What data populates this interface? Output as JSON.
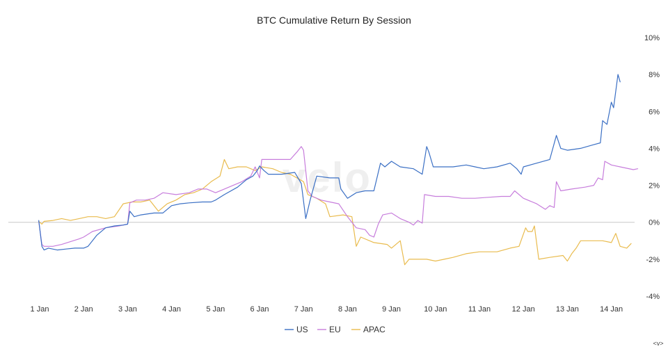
{
  "chart_data": {
    "type": "line",
    "title": "BTC Cumulative Return By Session",
    "xlabel": "",
    "ylabel": "",
    "x_tick_labels": [
      "1 Jan",
      "2 Jan",
      "3 Jan",
      "4 Jan",
      "5 Jan",
      "6 Jan",
      "7 Jan",
      "8 Jan",
      "9 Jan",
      "10 Jan",
      "11 Jan",
      "12 Jan",
      "13 Jan",
      "14 Jan"
    ],
    "y_ticks": [
      {
        "value": 10,
        "label": "10%"
      },
      {
        "value": 8,
        "label": "8%"
      },
      {
        "value": 6,
        "label": "6%"
      },
      {
        "value": 4,
        "label": "4%"
      },
      {
        "value": 2,
        "label": "2%"
      },
      {
        "value": 0,
        "label": "0%"
      },
      {
        "value": -2,
        "label": "-2%"
      },
      {
        "value": -4,
        "label": "-4%"
      }
    ],
    "ylim": [
      -4,
      10
    ],
    "xlim": [
      0.8,
      14.9
    ],
    "y_axis_side": "right",
    "grid": false,
    "zero_line": true,
    "legend_position": "bottom",
    "watermark": "velo",
    "footer_label": "<v>",
    "series": [
      {
        "name": "US",
        "color": "#3a6fc4",
        "points": [
          [
            0.98,
            0.1
          ],
          [
            1.05,
            -1.3
          ],
          [
            1.1,
            -1.5
          ],
          [
            1.2,
            -1.4
          ],
          [
            1.4,
            -1.5
          ],
          [
            1.6,
            -1.45
          ],
          [
            1.8,
            -1.4
          ],
          [
            2.0,
            -1.4
          ],
          [
            2.1,
            -1.3
          ],
          [
            2.3,
            -0.7
          ],
          [
            2.5,
            -0.3
          ],
          [
            2.7,
            -0.2
          ],
          [
            2.9,
            -0.15
          ],
          [
            3.0,
            -0.1
          ],
          [
            3.05,
            0.6
          ],
          [
            3.15,
            0.3
          ],
          [
            3.3,
            0.4
          ],
          [
            3.6,
            0.5
          ],
          [
            3.8,
            0.5
          ],
          [
            4.0,
            0.9
          ],
          [
            4.2,
            1.0
          ],
          [
            4.4,
            1.05
          ],
          [
            4.7,
            1.1
          ],
          [
            4.9,
            1.1
          ],
          [
            5.0,
            1.2
          ],
          [
            5.2,
            1.5
          ],
          [
            5.5,
            1.9
          ],
          [
            5.7,
            2.3
          ],
          [
            5.85,
            2.5
          ],
          [
            5.95,
            2.8
          ],
          [
            6.0,
            3.05
          ],
          [
            6.1,
            2.8
          ],
          [
            6.2,
            2.6
          ],
          [
            6.5,
            2.6
          ],
          [
            6.8,
            2.7
          ],
          [
            6.95,
            2.1
          ],
          [
            7.05,
            0.2
          ],
          [
            7.15,
            1.2
          ],
          [
            7.3,
            2.5
          ],
          [
            7.6,
            2.4
          ],
          [
            7.8,
            2.4
          ],
          [
            7.85,
            1.8
          ],
          [
            8.0,
            1.3
          ],
          [
            8.2,
            1.6
          ],
          [
            8.4,
            1.7
          ],
          [
            8.6,
            1.7
          ],
          [
            8.75,
            3.2
          ],
          [
            8.85,
            3.0
          ],
          [
            9.0,
            3.3
          ],
          [
            9.2,
            3.0
          ],
          [
            9.5,
            2.9
          ],
          [
            9.7,
            2.6
          ],
          [
            9.8,
            4.1
          ],
          [
            9.85,
            3.8
          ],
          [
            9.95,
            3.0
          ],
          [
            10.1,
            3.0
          ],
          [
            10.4,
            3.0
          ],
          [
            10.7,
            3.1
          ],
          [
            10.9,
            3.0
          ],
          [
            11.1,
            2.9
          ],
          [
            11.4,
            3.0
          ],
          [
            11.7,
            3.2
          ],
          [
            11.85,
            2.9
          ],
          [
            11.95,
            2.6
          ],
          [
            12.0,
            3.0
          ],
          [
            12.3,
            3.2
          ],
          [
            12.6,
            3.4
          ],
          [
            12.75,
            4.7
          ],
          [
            12.85,
            4.0
          ],
          [
            13.0,
            3.9
          ],
          [
            13.3,
            4.0
          ],
          [
            13.6,
            4.2
          ],
          [
            13.75,
            4.3
          ],
          [
            13.8,
            5.5
          ],
          [
            13.9,
            5.3
          ],
          [
            14.0,
            6.5
          ],
          [
            14.05,
            6.2
          ],
          [
            14.15,
            8.0
          ],
          [
            14.2,
            7.6
          ]
        ]
      },
      {
        "name": "EU",
        "color": "#c77ddc",
        "points": [
          [
            0.98,
            0.05
          ],
          [
            1.05,
            -1.2
          ],
          [
            1.1,
            -1.3
          ],
          [
            1.3,
            -1.3
          ],
          [
            1.5,
            -1.2
          ],
          [
            1.7,
            -1.05
          ],
          [
            1.9,
            -0.9
          ],
          [
            2.0,
            -0.8
          ],
          [
            2.2,
            -0.5
          ],
          [
            2.5,
            -0.3
          ],
          [
            2.8,
            -0.2
          ],
          [
            3.0,
            -0.1
          ],
          [
            3.05,
            1.05
          ],
          [
            3.2,
            1.2
          ],
          [
            3.4,
            1.2
          ],
          [
            3.6,
            1.3
          ],
          [
            3.8,
            1.6
          ],
          [
            4.1,
            1.5
          ],
          [
            4.4,
            1.6
          ],
          [
            4.6,
            1.8
          ],
          [
            4.8,
            1.8
          ],
          [
            5.0,
            1.6
          ],
          [
            5.2,
            1.8
          ],
          [
            5.4,
            2.0
          ],
          [
            5.6,
            2.2
          ],
          [
            5.8,
            2.5
          ],
          [
            5.9,
            3.0
          ],
          [
            6.0,
            2.4
          ],
          [
            6.05,
            3.4
          ],
          [
            6.3,
            3.4
          ],
          [
            6.5,
            3.4
          ],
          [
            6.7,
            3.4
          ],
          [
            6.85,
            3.8
          ],
          [
            6.95,
            4.1
          ],
          [
            7.0,
            3.9
          ],
          [
            7.1,
            1.7
          ],
          [
            7.2,
            1.4
          ],
          [
            7.4,
            1.2
          ],
          [
            7.6,
            1.1
          ],
          [
            7.8,
            1.0
          ],
          [
            8.0,
            0.3
          ],
          [
            8.2,
            -0.3
          ],
          [
            8.4,
            -0.4
          ],
          [
            8.5,
            -0.7
          ],
          [
            8.6,
            -0.8
          ],
          [
            8.7,
            -0.1
          ],
          [
            8.8,
            0.4
          ],
          [
            9.0,
            0.5
          ],
          [
            9.2,
            0.2
          ],
          [
            9.4,
            0.0
          ],
          [
            9.5,
            -0.15
          ],
          [
            9.6,
            0.1
          ],
          [
            9.7,
            -0.05
          ],
          [
            9.75,
            1.5
          ],
          [
            10.0,
            1.4
          ],
          [
            10.3,
            1.4
          ],
          [
            10.6,
            1.3
          ],
          [
            10.9,
            1.3
          ],
          [
            11.2,
            1.35
          ],
          [
            11.5,
            1.4
          ],
          [
            11.7,
            1.4
          ],
          [
            11.8,
            1.7
          ],
          [
            12.0,
            1.3
          ],
          [
            12.3,
            1.0
          ],
          [
            12.5,
            0.7
          ],
          [
            12.6,
            0.9
          ],
          [
            12.7,
            0.8
          ],
          [
            12.75,
            2.2
          ],
          [
            12.85,
            1.7
          ],
          [
            13.1,
            1.8
          ],
          [
            13.4,
            1.9
          ],
          [
            13.6,
            2.0
          ],
          [
            13.7,
            2.4
          ],
          [
            13.8,
            2.3
          ],
          [
            13.85,
            3.3
          ],
          [
            14.0,
            3.1
          ],
          [
            14.2,
            3.0
          ],
          [
            14.5,
            2.85
          ],
          [
            14.6,
            2.9
          ]
        ]
      },
      {
        "name": "APAC",
        "color": "#e9bb4d",
        "points": [
          [
            0.98,
            0.05
          ],
          [
            1.05,
            -0.1
          ],
          [
            1.1,
            0.05
          ],
          [
            1.3,
            0.1
          ],
          [
            1.5,
            0.2
          ],
          [
            1.7,
            0.1
          ],
          [
            1.9,
            0.2
          ],
          [
            2.1,
            0.3
          ],
          [
            2.3,
            0.3
          ],
          [
            2.5,
            0.2
          ],
          [
            2.7,
            0.3
          ],
          [
            2.9,
            1.0
          ],
          [
            3.1,
            1.1
          ],
          [
            3.3,
            1.1
          ],
          [
            3.5,
            1.2
          ],
          [
            3.7,
            0.6
          ],
          [
            3.9,
            1.0
          ],
          [
            4.1,
            1.2
          ],
          [
            4.3,
            1.5
          ],
          [
            4.5,
            1.6
          ],
          [
            4.7,
            1.8
          ],
          [
            4.9,
            2.2
          ],
          [
            5.1,
            2.5
          ],
          [
            5.2,
            3.4
          ],
          [
            5.3,
            2.9
          ],
          [
            5.5,
            3.0
          ],
          [
            5.7,
            3.0
          ],
          [
            5.9,
            2.8
          ],
          [
            6.05,
            3.0
          ],
          [
            6.3,
            2.9
          ],
          [
            6.5,
            2.7
          ],
          [
            6.7,
            2.6
          ],
          [
            6.85,
            2.4
          ],
          [
            7.0,
            2.2
          ],
          [
            7.1,
            1.5
          ],
          [
            7.3,
            1.3
          ],
          [
            7.5,
            1.0
          ],
          [
            7.6,
            0.3
          ],
          [
            7.9,
            0.4
          ],
          [
            8.1,
            0.3
          ],
          [
            8.2,
            -1.3
          ],
          [
            8.3,
            -0.8
          ],
          [
            8.6,
            -1.1
          ],
          [
            8.9,
            -1.2
          ],
          [
            9.0,
            -1.4
          ],
          [
            9.2,
            -1.0
          ],
          [
            9.3,
            -2.3
          ],
          [
            9.4,
            -2.0
          ],
          [
            9.6,
            -2.0
          ],
          [
            9.8,
            -2.0
          ],
          [
            10.0,
            -2.1
          ],
          [
            10.2,
            -2.0
          ],
          [
            10.4,
            -1.9
          ],
          [
            10.7,
            -1.7
          ],
          [
            11.0,
            -1.6
          ],
          [
            11.4,
            -1.6
          ],
          [
            11.7,
            -1.4
          ],
          [
            11.9,
            -1.3
          ],
          [
            12.05,
            -0.3
          ],
          [
            12.1,
            -0.5
          ],
          [
            12.2,
            -0.5
          ],
          [
            12.25,
            -0.2
          ],
          [
            12.35,
            -2.0
          ],
          [
            12.6,
            -1.9
          ],
          [
            12.9,
            -1.8
          ],
          [
            13.0,
            -2.1
          ],
          [
            13.1,
            -1.7
          ],
          [
            13.2,
            -1.4
          ],
          [
            13.3,
            -1.0
          ],
          [
            13.5,
            -1.0
          ],
          [
            13.8,
            -1.0
          ],
          [
            14.0,
            -1.1
          ],
          [
            14.1,
            -0.6
          ],
          [
            14.2,
            -1.3
          ],
          [
            14.35,
            -1.4
          ],
          [
            14.45,
            -1.15
          ]
        ]
      }
    ]
  }
}
